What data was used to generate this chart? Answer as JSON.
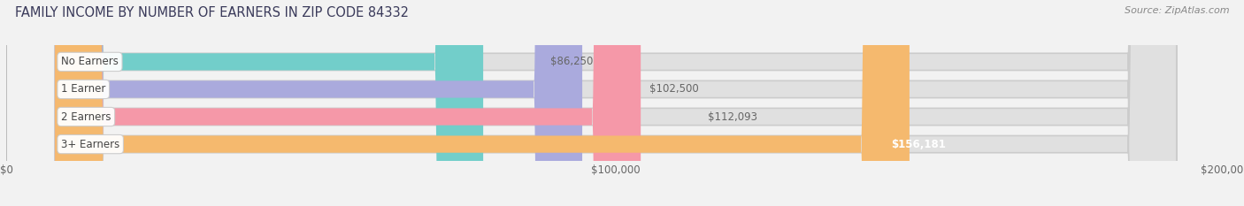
{
  "title": "FAMILY INCOME BY NUMBER OF EARNERS IN ZIP CODE 84332",
  "source_text": "Source: ZipAtlas.com",
  "categories": [
    "No Earners",
    "1 Earner",
    "2 Earners",
    "3+ Earners"
  ],
  "values": [
    86250,
    102500,
    112093,
    156181
  ],
  "value_labels": [
    "$86,250",
    "$102,500",
    "$112,093",
    "$156,181"
  ],
  "bar_colors": [
    "#72ceca",
    "#aaaadd",
    "#f598a8",
    "#f5b96e"
  ],
  "background_color": "#f2f2f2",
  "bar_bg_color": "#e0e0e0",
  "xmax": 200000,
  "x_ticks": [
    0,
    100000,
    200000
  ],
  "x_tick_labels": [
    "$0",
    "$100,000",
    "$200,000"
  ],
  "label_fontsize": 8.5,
  "title_fontsize": 10.5,
  "value_label_fontsize": 8.5,
  "source_fontsize": 8,
  "bar_height": 0.62
}
